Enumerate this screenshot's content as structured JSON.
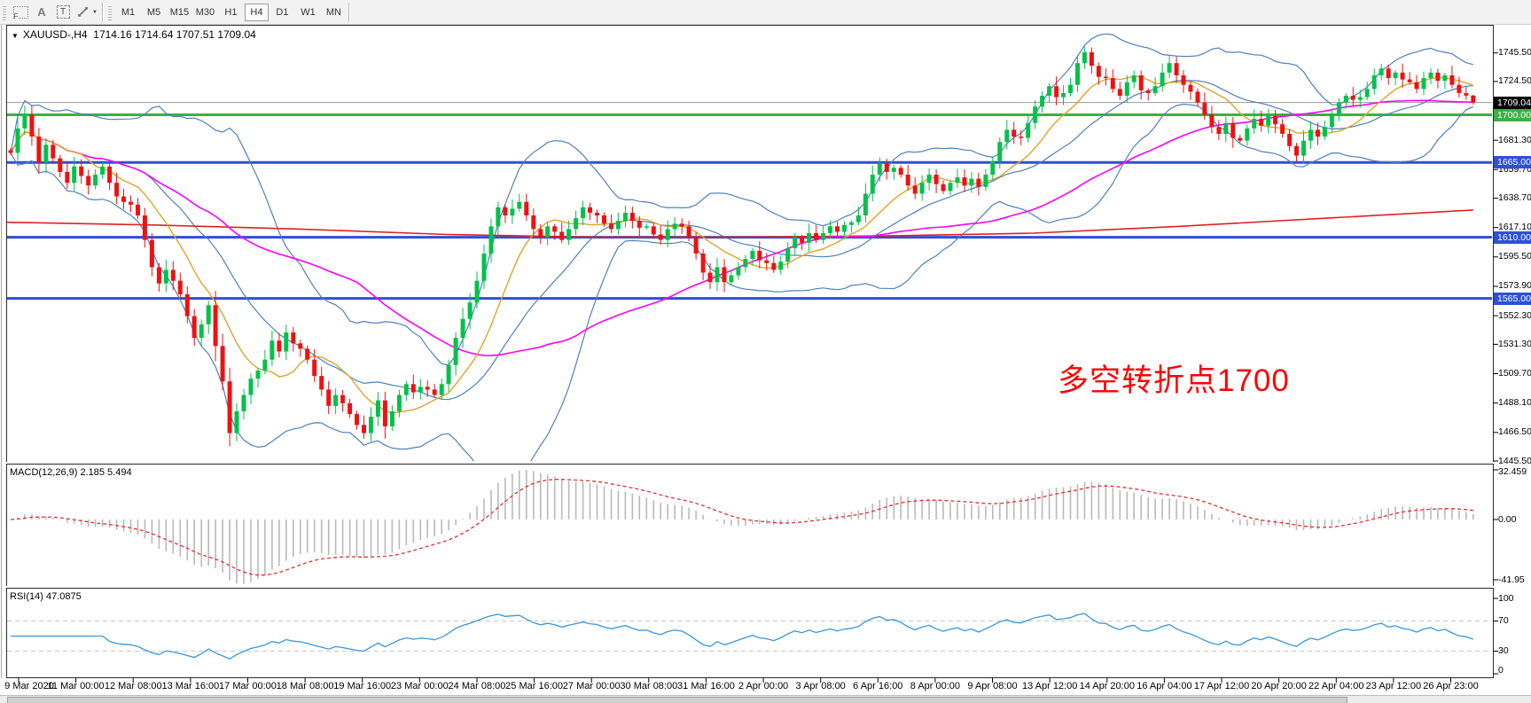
{
  "toolbar": {
    "icons": [
      {
        "name": "template-grid-icon",
        "glyph": "F"
      },
      {
        "name": "text-label-icon",
        "glyph": "A"
      },
      {
        "name": "text-box-icon",
        "glyph": "T"
      },
      {
        "name": "cursor-arrows-icon",
        "glyph": ""
      }
    ],
    "dropdown_glyph": "▼",
    "timeframes": [
      "M1",
      "M5",
      "M15",
      "M30",
      "H1",
      "H4",
      "D1",
      "W1",
      "MN"
    ],
    "active_timeframe": "H4"
  },
  "chart": {
    "dropdown_glyph": "▼",
    "symbol_period": "XAUUSD-,H4",
    "ohlc_text": "1714.16 1714.64 1707.51 1709.04",
    "current_price": "1709.04",
    "annotation": {
      "text": "多空转折点1700",
      "color": "#fd0202"
    }
  },
  "macd_panel": {
    "label": "MACD(12,26,9) 2.185 5.494",
    "axis_labels": [
      "32.459",
      "0.00",
      "-41.95"
    ]
  },
  "rsi_panel": {
    "label": "RSI(14) 47.0875",
    "axis_labels": [
      "100",
      "70",
      "30",
      "0"
    ]
  },
  "chart_data": {
    "type": "candlestick",
    "symbol": "XAUUSD",
    "timeframe": "H4",
    "estimated": true,
    "ylim": [
      1445.5,
      1765.5
    ],
    "tick_values": [
      1745.5,
      1724.5,
      1681.3,
      1659.7,
      1638.7,
      1617.1,
      1595.5,
      1573.9,
      1552.3,
      1531.3,
      1509.7,
      1488.1,
      1466.5,
      1445.5
    ],
    "tick_labels": [
      "1745.50",
      "1724.50",
      "1681.30",
      "1659.70",
      "1638.70",
      "1617.10",
      "1595.50",
      "1573.90",
      "1552.30",
      "1531.30",
      "1509.70",
      "1488.10",
      "1466.50",
      "1445.50"
    ],
    "x_labels": [
      "9 Mar 2020",
      "11 Mar 00:00",
      "12 Mar 08:00",
      "13 Mar 16:00",
      "17 Mar 00:00",
      "18 Mar 08:00",
      "19 Mar 16:00",
      "23 Mar 00:00",
      "24 Mar 08:00",
      "25 Mar 16:00",
      "27 Mar 00:00",
      "30 Mar 08:00",
      "31 Mar 16:00",
      "2 Apr 00:00",
      "3 Apr 08:00",
      "6 Apr 16:00",
      "8 Apr 00:00",
      "9 Apr 08:00",
      "13 Apr 12:00",
      "14 Apr 20:00",
      "16 Apr 04:00",
      "17 Apr 12:00",
      "20 Apr 20:00",
      "22 Apr 04:00",
      "23 Apr 12:00",
      "26 Apr 23:00"
    ],
    "hlines": [
      {
        "price": 1700.0,
        "label": "1700.00",
        "color": "#3cb044"
      },
      {
        "price": 1665.0,
        "label": "1665.00",
        "color": "#2e4fd8"
      },
      {
        "price": 1610.0,
        "label": "1610.00",
        "color": "#2e4fd8"
      },
      {
        "price": 1565.0,
        "label": "1565.00",
        "color": "#2e4fd8"
      }
    ],
    "current_price": 1709.04,
    "current_label_bg": "#000000",
    "last_candle": [
      1714.16,
      1714.64,
      1707.51,
      1709.04
    ],
    "first_open": 1674,
    "closes": [
      1672,
      1690,
      1700,
      1684,
      1665,
      1678,
      1668,
      1658,
      1650,
      1662,
      1655,
      1648,
      1656,
      1662,
      1650,
      1640,
      1636,
      1634,
      1626,
      1608,
      1588,
      1576,
      1586,
      1578,
      1568,
      1552,
      1536,
      1546,
      1560,
      1530,
      1504,
      1466,
      1482,
      1494,
      1506,
      1512,
      1520,
      1534,
      1526,
      1540,
      1532,
      1528,
      1520,
      1508,
      1498,
      1486,
      1494,
      1488,
      1480,
      1472,
      1466,
      1478,
      1490,
      1471,
      1482,
      1494,
      1502,
      1496,
      1500,
      1498,
      1494,
      1502,
      1516,
      1536,
      1550,
      1562,
      1578,
      1598,
      1618,
      1632,
      1626,
      1631,
      1636,
      1626,
      1616,
      1610,
      1618,
      1614,
      1608,
      1616,
      1624,
      1632,
      1628,
      1626,
      1620,
      1616,
      1622,
      1628,
      1622,
      1617,
      1618,
      1612,
      1608,
      1616,
      1620,
      1618,
      1610,
      1598,
      1584,
      1577,
      1588,
      1577,
      1582,
      1588,
      1594,
      1600,
      1593,
      1591,
      1586,
      1592,
      1602,
      1610,
      1606,
      1613,
      1608,
      1613,
      1618,
      1614,
      1619,
      1621,
      1626,
      1642,
      1656,
      1664,
      1658,
      1661,
      1656,
      1648,
      1642,
      1650,
      1656,
      1649,
      1644,
      1650,
      1654,
      1648,
      1653,
      1647,
      1656,
      1666,
      1680,
      1689,
      1684,
      1683,
      1694,
      1706,
      1714,
      1721,
      1713,
      1716,
      1722,
      1738,
      1746,
      1736,
      1728,
      1727,
      1719,
      1714,
      1724,
      1729,
      1718,
      1716,
      1721,
      1731,
      1738,
      1729,
      1722,
      1717,
      1709,
      1700,
      1691,
      1686,
      1694,
      1683,
      1681,
      1690,
      1697,
      1692,
      1699,
      1693,
      1686,
      1677,
      1670,
      1681,
      1689,
      1684,
      1691,
      1700,
      1709,
      1714,
      1711,
      1713,
      1719,
      1729,
      1734,
      1727,
      1731,
      1726,
      1724,
      1719,
      1727,
      1731,
      1725,
      1729,
      1722,
      1716,
      1714.16,
      1709.04
    ],
    "colors": {
      "up": "#00c24a",
      "down": "#ee1111",
      "bollinger": "#4f81bd",
      "sma_fast": "#dfa42c",
      "sma_mid": "#ff00ff",
      "sma_slow": "#dd2222",
      "macd_hist": "#b9b9b9",
      "macd_signal": "#e03030",
      "rsi": "#3a96dd",
      "rsi_levels": "#c8c8c8",
      "current_line": "#9a9a9a"
    },
    "overlays": {
      "bollinger": {
        "period": 20,
        "deviation": 2
      },
      "sma_fast_period": 10,
      "sma_mid_period": 50,
      "sma_slow_path": [
        [
          0,
          1621
        ],
        [
          0.1,
          1619
        ],
        [
          0.2,
          1616
        ],
        [
          0.3,
          1612
        ],
        [
          0.4,
          1610
        ],
        [
          0.5,
          1610
        ],
        [
          0.6,
          1611
        ],
        [
          0.7,
          1613
        ],
        [
          0.8,
          1618
        ],
        [
          0.9,
          1624
        ],
        [
          1,
          1630
        ]
      ]
    },
    "macd": {
      "fast": 12,
      "slow": 26,
      "signal": 9,
      "current_macd": 2.185,
      "current_signal": 5.494,
      "axis_max": 32.459,
      "axis_min": -41.95
    },
    "rsi": {
      "period": 14,
      "current": 47.0875,
      "levels": [
        70,
        30
      ],
      "ylim": [
        0,
        100
      ]
    }
  }
}
